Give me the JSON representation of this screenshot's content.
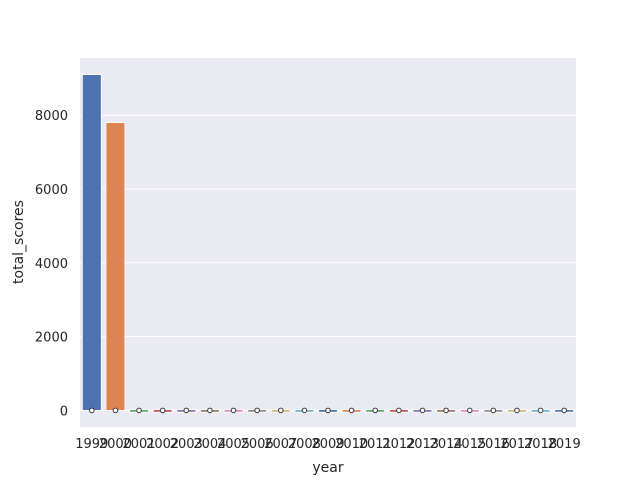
{
  "chart_data": {
    "type": "bar",
    "title": "",
    "xlabel": "year",
    "ylabel": "total_scores",
    "categories": [
      "1999",
      "2000",
      "2001",
      "2002",
      "2003",
      "2004",
      "2005",
      "2006",
      "2007",
      "2008",
      "2009",
      "2010",
      "2011",
      "2012",
      "2013",
      "2014",
      "2015",
      "2016",
      "2017",
      "2018",
      "2019"
    ],
    "values": [
      9100,
      7800,
      20,
      20,
      20,
      20,
      20,
      20,
      20,
      20,
      20,
      20,
      20,
      20,
      20,
      20,
      20,
      20,
      20,
      20,
      20
    ],
    "ylim": [
      -450,
      9550
    ],
    "yticks": [
      0,
      2000,
      4000,
      6000,
      8000
    ],
    "ytick_labels": [
      "0",
      "2000",
      "4000",
      "6000",
      "8000"
    ],
    "grid": true,
    "background": "#EAEAF2",
    "colors": [
      "#4C72B0",
      "#DD8452",
      "#55A868",
      "#C44E52",
      "#8172B3",
      "#937860",
      "#DA8BC3",
      "#8C8C8C",
      "#CCB974",
      "#64B5CD",
      "#4C72B0",
      "#DD8452",
      "#55A868",
      "#C44E52",
      "#8172B3",
      "#937860",
      "#DA8BC3",
      "#8C8C8C",
      "#CCB974",
      "#64B5CD",
      "#4C72B0"
    ]
  }
}
